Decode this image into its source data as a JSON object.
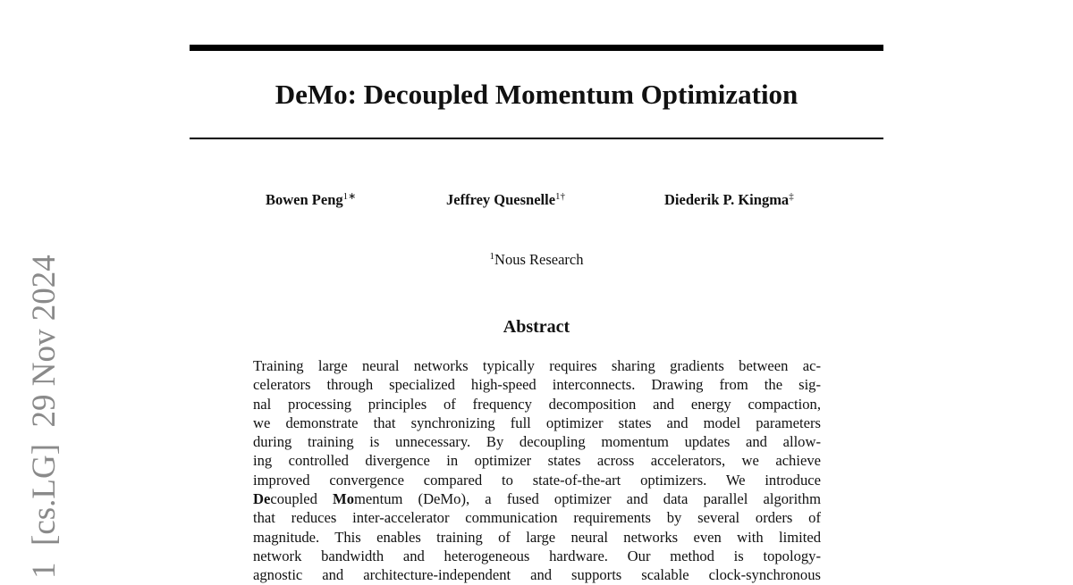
{
  "arxiv_stamp": "1  [cs.LG]  29 Nov 2024",
  "title": "DeMo: Decoupled Momentum Optimization",
  "authors": [
    {
      "name": "Bowen Peng",
      "marks": "1∗"
    },
    {
      "name": "Jeffrey Quesnelle",
      "marks": "1†"
    },
    {
      "name": "Diederik P. Kingma",
      "marks": "‡"
    }
  ],
  "affiliation": {
    "mark": "1",
    "name": "Nous Research"
  },
  "abstract": {
    "heading": "Abstract",
    "lines": [
      "Training large neural networks typically requires sharing gradients between ac-",
      "celerators through specialized high-speed interconnects. Drawing from the sig-",
      "nal processing principles of frequency decomposition and energy compaction,",
      "we demonstrate that synchronizing full optimizer states and model parameters",
      "during training is unnecessary. By decoupling momentum updates and allow-",
      "ing controlled divergence in optimizer states across accelerators, we achieve",
      "improved convergence compared to state-of-the-art optimizers. We introduce",
      {
        "bold1": "De",
        "text1": "coupled ",
        "bold2": "Mo",
        "text2": "mentum (DeMo), a fused optimizer and data parallel algorithm"
      },
      "that reduces inter-accelerator communication requirements by several orders of",
      "magnitude. This enables training of large neural networks even with limited",
      "network bandwidth and heterogeneous hardware. Our method is topology-",
      "agnostic and architecture-independent and supports scalable clock-synchronous"
    ]
  }
}
